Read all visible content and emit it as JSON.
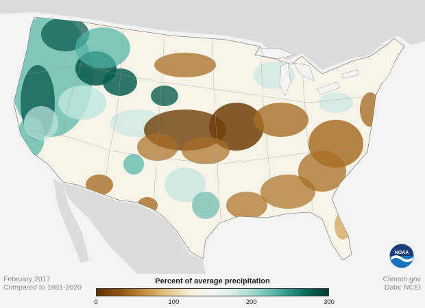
{
  "caption": {
    "date": "February 2017",
    "comparison": "Compared to 1991-2020"
  },
  "credit": {
    "site": "Climate.gov",
    "source": "Data: NCEI"
  },
  "logo": {
    "text": "NOAA"
  },
  "legend": {
    "title": "Percent of average precipitation",
    "ticks": [
      "0",
      "100",
      "200",
      "300"
    ],
    "range": [
      0,
      300
    ],
    "colors": [
      "#5e3305",
      "#8c5413",
      "#c08a3a",
      "#e0c386",
      "#f8efd9",
      "#f5f7f2",
      "#d2ece7",
      "#8fd1c5",
      "#3ea597",
      "#0a6b5d",
      "#013b30"
    ]
  },
  "map_colors": {
    "very_dry": "#6e3f09",
    "dry": "#a86e24",
    "somewhat_dry": "#d4aa66",
    "near_normal": "#f7f3e8",
    "somewhat_wet": "#bfe6df",
    "wet": "#4fb3a5",
    "very_wet": "#0b5f52",
    "outside": "#dcdcdc",
    "water": "#f3f3f3"
  }
}
